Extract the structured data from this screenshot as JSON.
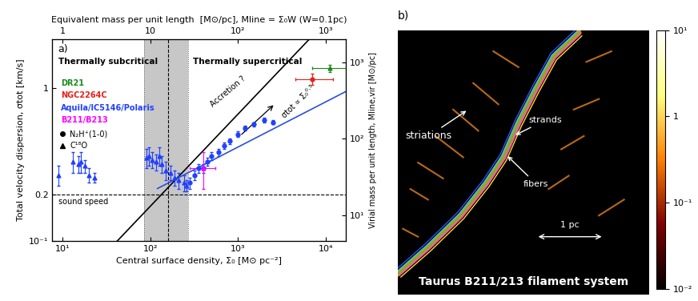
{
  "chart_data": {
    "type": "scatter",
    "panel_label": "a)",
    "log": true,
    "grid": false,
    "x_label": "Central surface density, Σ₀ [M⊙ pc⁻²]",
    "y_label": "Total velocity dispersion, σtot [km/s]",
    "x2_label": "Equivalent mass per unit length  [M⊙/pc], Mline = Σ₀W (W=0.1pc)",
    "y2_label": "Virial mass per unit length, Mline,vir [M⊙/pc]",
    "xlim": [
      7.6,
      16800
    ],
    "xticks": [
      {
        "value": 10,
        "label": "10¹"
      },
      {
        "value": 100,
        "label": "10²"
      },
      {
        "value": 1000,
        "label": "10³"
      },
      {
        "value": 10000,
        "label": "10⁴"
      }
    ],
    "ylim": [
      0.1,
      2.1
    ],
    "yticks": [
      {
        "value": 0.1,
        "label": "10⁻¹"
      },
      0.2,
      1
    ],
    "x2lim": [
      0.76,
      1680
    ],
    "x2ticks": [
      1,
      10,
      {
        "value": 100,
        "label": "10²"
      },
      {
        "value": 1000,
        "label": "10³"
      }
    ],
    "y2lim": [
      4.65,
      2010
    ],
    "y2ticks": [
      {
        "value": 10,
        "label": "10¹"
      },
      {
        "value": 100,
        "label": "10²"
      },
      {
        "value": 1000,
        "label": "10³"
      }
    ],
    "series": [
      {
        "name": "DR21",
        "color": "#1a8a1a",
        "marker": "triangle",
        "x": [
          11000
        ],
        "values": [
          1.35
        ],
        "y_err": [
          0.08
        ],
        "x_err_minus": [
          4000
        ],
        "x_err_plus": [
          9000
        ]
      },
      {
        "name": "NGC2264C",
        "color": "#e8201a",
        "marker": "circle",
        "x": [
          7000
        ],
        "values": [
          1.15
        ],
        "y_err": [
          0.1
        ],
        "x_err_minus": [
          2500
        ],
        "x_err_plus": [
          5000
        ]
      },
      {
        "name": "Aquila/IC5146/Polaris",
        "color": "#2040ff",
        "marker": "triangle",
        "x": [
          9,
          13,
          15,
          16,
          18,
          20,
          23,
          90,
          95,
          105,
          115,
          125,
          135,
          150,
          170,
          190,
          210,
          240,
          260
        ],
        "values": [
          0.27,
          0.33,
          0.32,
          0.33,
          0.31,
          0.27,
          0.26,
          0.35,
          0.36,
          0.34,
          0.33,
          0.36,
          0.32,
          0.29,
          0.28,
          0.26,
          0.25,
          0.24,
          0.23
        ],
        "y_err": [
          0.04,
          0.05,
          0.04,
          0.05,
          0.03,
          0.03,
          0.02,
          0.05,
          0.05,
          0.04,
          0.04,
          0.05,
          0.04,
          0.04,
          0.03,
          0.03,
          0.03,
          0.03,
          0.02
        ]
      },
      {
        "name": "Aquila/IC5146/Polaris",
        "color": "#2040ff",
        "marker": "circle",
        "x": [
          280,
          320,
          350,
          400,
          450,
          500,
          600,
          700,
          800,
          1000,
          1200,
          1500,
          2000,
          2500
        ],
        "values": [
          0.24,
          0.27,
          0.3,
          0.3,
          0.33,
          0.36,
          0.38,
          0.42,
          0.45,
          0.5,
          0.55,
          0.58,
          0.62,
          0.6
        ],
        "y_err": [
          0.02,
          0.02,
          0.02,
          0.02,
          0.02,
          0.02,
          0.02,
          0.02,
          0.02,
          0.02,
          0.02,
          0.02,
          0.02,
          0.02
        ]
      },
      {
        "name": "B211/B213",
        "color": "#ff00ff",
        "marker": "triangle",
        "x": [
          400
        ],
        "values": [
          0.3
        ],
        "y_err": [
          0.08
        ],
        "x_err_minus": [
          120
        ],
        "x_err_plus": [
          150
        ]
      }
    ],
    "lines": [
      {
        "color": "#000000",
        "x": [
          42,
          6500
        ],
        "values": [
          0.1,
          2.1
        ]
      },
      {
        "color": "#2b4de0",
        "x": [
          120,
          16800
        ],
        "values": [
          0.22,
          0.95
        ]
      }
    ],
    "sound_speed": 0.2,
    "sound_speed_label": "sound speed",
    "critical_band": [
      85,
      270
    ],
    "critical_line": 160,
    "marker_key": [
      {
        "marker": "circle",
        "label": "N₂H⁺(1-0)"
      },
      {
        "marker": "triangle",
        "label": "C¹⁸O"
      }
    ],
    "annotations": {
      "subcritical": "Thermally subcritical",
      "supercritical": "Thermally supercritical",
      "accretion": "Accretion ?",
      "slope": "σtot ∝ Σ₀⁰·⁵"
    }
  },
  "panel_b": {
    "panel_label": "b)",
    "labels": {
      "striations": "striations",
      "strands": "strands",
      "fibers": "fibers"
    },
    "scale_bar": "1 pc",
    "title": "Taurus B211/213 filament system",
    "colorbar": {
      "log": true,
      "range": [
        0.01,
        10
      ],
      "ticks": [
        {
          "value": 0.01,
          "label": "10⁻²"
        },
        {
          "value": 0.1,
          "label": "10⁻¹"
        },
        1,
        {
          "value": 10,
          "label": "10¹"
        }
      ]
    }
  }
}
